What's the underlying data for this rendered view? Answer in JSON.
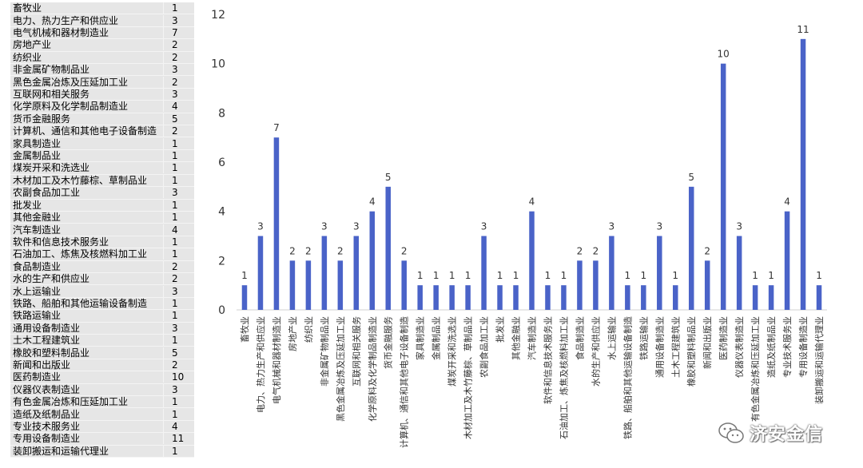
{
  "table": {
    "rows": [
      {
        "name": "畜牧业",
        "count": "1"
      },
      {
        "name": "电力、热力生产和供应业",
        "count": "3"
      },
      {
        "name": "电气机械和器材制造业",
        "count": "7"
      },
      {
        "name": "房地产业",
        "count": "2"
      },
      {
        "name": "纺织业",
        "count": "2"
      },
      {
        "name": "非金属矿物制品业",
        "count": "3"
      },
      {
        "name": "黑色金属冶炼及压延加工业",
        "count": "2"
      },
      {
        "name": "互联网和相关服务",
        "count": "3"
      },
      {
        "name": "化学原料及化学制品制造业",
        "count": "4"
      },
      {
        "name": "货币金融服务",
        "count": "5"
      },
      {
        "name": "计算机、通信和其他电子设备制造",
        "count": "2"
      },
      {
        "name": "家具制造业",
        "count": "1"
      },
      {
        "name": "金属制品业",
        "count": "1"
      },
      {
        "name": "煤炭开采和洗选业",
        "count": "1"
      },
      {
        "name": "木材加工及木竹藤棕、草制品业",
        "count": "1"
      },
      {
        "name": "农副食品加工业",
        "count": "3"
      },
      {
        "name": "批发业",
        "count": "1"
      },
      {
        "name": "其他金融业",
        "count": "1"
      },
      {
        "name": "汽车制造业",
        "count": "4"
      },
      {
        "name": "软件和信息技术服务业",
        "count": "1"
      },
      {
        "name": "石油加工、炼焦及核燃料加工业",
        "count": "1"
      },
      {
        "name": "食品制造业",
        "count": "2"
      },
      {
        "name": "水的生产和供应业",
        "count": "2"
      },
      {
        "name": "水上运输业",
        "count": "3"
      },
      {
        "name": "铁路、船舶和其他运输设备制造",
        "count": "1"
      },
      {
        "name": "铁路运输业",
        "count": "1"
      },
      {
        "name": "通用设备制造业",
        "count": "3"
      },
      {
        "name": "土木工程建筑业",
        "count": "1"
      },
      {
        "name": "橡胶和塑料制品业",
        "count": "5"
      },
      {
        "name": "新闻和出版业",
        "count": "2"
      },
      {
        "name": "医药制造业",
        "count": "10"
      },
      {
        "name": "仪器仪表制造业",
        "count": "3"
      },
      {
        "name": "有色金属冶炼和压延加工业",
        "count": "1"
      },
      {
        "name": "造纸及纸制品业",
        "count": "1"
      },
      {
        "name": "专业技术服务业",
        "count": "4"
      },
      {
        "name": "专用设备制造业",
        "count": "11"
      },
      {
        "name": "装卸搬运和运输代理业",
        "count": "1"
      }
    ]
  },
  "chart_data": {
    "type": "bar",
    "title": "",
    "xlabel": "",
    "ylabel": "",
    "ylim": [
      0,
      12
    ],
    "yticks": [
      0,
      2,
      4,
      6,
      8,
      10,
      12
    ],
    "grid": false,
    "data_labels": true,
    "bar_color": "#4a63c8",
    "categories": [
      "畜牧业",
      "电力、热力生产和供应业",
      "电气机械和器材制造业",
      "房地产业",
      "纺织业",
      "非金属矿物制品业",
      "黑色金属冶炼及压延加工业",
      "互联网和相关服务",
      "化学原料及化学制品制造业",
      "货币金融服务",
      "计算机、通信和其他电子设备制造",
      "家具制造业",
      "金属制品业",
      "煤炭开采和洗选业",
      "木材加工及木竹藤棕、草制品业",
      "农副食品加工业",
      "批发业",
      "其他金融业",
      "汽车制造业",
      "软件和信息技术服务业",
      "石油加工、炼焦及核燃料加工业",
      "食品制造业",
      "水的生产和供应业",
      "水上运输业",
      "铁路、船舶和其他运输设备制造",
      "铁路运输业",
      "通用设备制造业",
      "土木工程建筑业",
      "橡胶和塑料制品业",
      "新闻和出版业",
      "医药制造业",
      "仪器仪表制造业",
      "有色金属冶炼和压延加工业",
      "造纸及纸制品业",
      "专业技术服务业",
      "专用设备制造业",
      "装卸搬运和运输代理业"
    ],
    "values": [
      1,
      3,
      7,
      2,
      2,
      3,
      2,
      3,
      4,
      5,
      2,
      1,
      1,
      1,
      1,
      3,
      1,
      1,
      4,
      1,
      1,
      2,
      2,
      3,
      1,
      1,
      3,
      1,
      5,
      2,
      10,
      3,
      1,
      1,
      4,
      11,
      1
    ]
  },
  "watermark": {
    "text": "济安金信",
    "icon": "wechat-icon"
  }
}
